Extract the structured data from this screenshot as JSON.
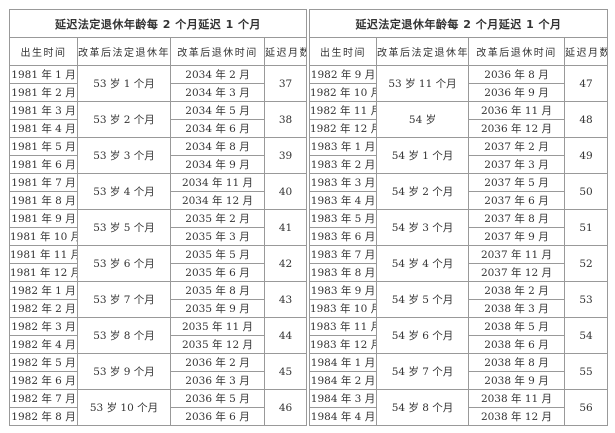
{
  "tables": [
    {
      "title": "延迟法定退休年龄每 2 个月延迟 1 个月",
      "headers": [
        "出生时间",
        "改革后法定退休年龄",
        "改革后退休时间",
        "延迟月数"
      ],
      "groups": [
        {
          "age": "53 岁 1 个月",
          "delay": "37",
          "rows": [
            {
              "birth": "1981 年 1 月",
              "retire": "2034 年 2 月"
            },
            {
              "birth": "1981 年 2 月",
              "retire": "2034 年 3 月"
            }
          ]
        },
        {
          "age": "53 岁 2 个月",
          "delay": "38",
          "rows": [
            {
              "birth": "1981 年 3 月",
              "retire": "2034 年 5 月"
            },
            {
              "birth": "1981 年 4 月",
              "retire": "2034 年 6 月"
            }
          ]
        },
        {
          "age": "53 岁 3 个月",
          "delay": "39",
          "rows": [
            {
              "birth": "1981 年 5 月",
              "retire": "2034 年 8 月"
            },
            {
              "birth": "1981 年 6 月",
              "retire": "2034 年 9 月"
            }
          ]
        },
        {
          "age": "53 岁 4 个月",
          "delay": "40",
          "rows": [
            {
              "birth": "1981 年 7 月",
              "retire": "2034 年 11 月"
            },
            {
              "birth": "1981 年 8 月",
              "retire": "2034 年 12 月"
            }
          ]
        },
        {
          "age": "53 岁 5 个月",
          "delay": "41",
          "rows": [
            {
              "birth": "1981 年 9 月",
              "retire": "2035 年 2 月"
            },
            {
              "birth": "1981 年 10 月",
              "retire": "2035 年 3 月"
            }
          ]
        },
        {
          "age": "53 岁 6 个月",
          "delay": "42",
          "rows": [
            {
              "birth": "1981 年 11 月",
              "retire": "2035 年 5 月"
            },
            {
              "birth": "1981 年 12 月",
              "retire": "2035 年 6 月"
            }
          ]
        },
        {
          "age": "53 岁 7 个月",
          "delay": "43",
          "rows": [
            {
              "birth": "1982 年 1 月",
              "retire": "2035 年 8 月"
            },
            {
              "birth": "1982 年 2 月",
              "retire": "2035 年 9 月"
            }
          ]
        },
        {
          "age": "53 岁 8 个月",
          "delay": "44",
          "rows": [
            {
              "birth": "1982 年 3 月",
              "retire": "2035 年 11 月"
            },
            {
              "birth": "1982 年 4 月",
              "retire": "2035 年 12 月"
            }
          ]
        },
        {
          "age": "53 岁 9 个月",
          "delay": "45",
          "rows": [
            {
              "birth": "1982 年 5 月",
              "retire": "2036 年 2 月"
            },
            {
              "birth": "1982 年 6 月",
              "retire": "2036 年 3 月"
            }
          ]
        },
        {
          "age": "53 岁 10 个月",
          "delay": "46",
          "rows": [
            {
              "birth": "1982 年 7 月",
              "retire": "2036 年 5 月"
            },
            {
              "birth": "1982 年 8 月",
              "retire": "2036 年 6 月"
            }
          ]
        }
      ]
    },
    {
      "title": "延迟法定退休年龄每 2 个月延迟 1 个月",
      "headers": [
        "出生时间",
        "改革后法定退休年龄",
        "改革后退休时间",
        "延迟月数"
      ],
      "groups": [
        {
          "age": "53 岁 11 个月",
          "delay": "47",
          "rows": [
            {
              "birth": "1982 年 9 月",
              "retire": "2036 年 8 月"
            },
            {
              "birth": "1982 年 10 月",
              "retire": "2036 年 9 月"
            }
          ]
        },
        {
          "age": "54 岁",
          "delay": "48",
          "rows": [
            {
              "birth": "1982 年 11 月",
              "retire": "2036 年 11 月"
            },
            {
              "birth": "1982 年 12 月",
              "retire": "2036 年 12 月"
            }
          ]
        },
        {
          "age": "54 岁 1 个月",
          "delay": "49",
          "rows": [
            {
              "birth": "1983 年 1 月",
              "retire": "2037 年 2 月"
            },
            {
              "birth": "1983 年 2 月",
              "retire": "2037 年 3 月"
            }
          ]
        },
        {
          "age": "54 岁 2 个月",
          "delay": "50",
          "rows": [
            {
              "birth": "1983 年 3 月",
              "retire": "2037 年 5 月"
            },
            {
              "birth": "1983 年 4 月",
              "retire": "2037 年 6 月"
            }
          ]
        },
        {
          "age": "54 岁 3 个月",
          "delay": "51",
          "rows": [
            {
              "birth": "1983 年 5 月",
              "retire": "2037 年 8 月"
            },
            {
              "birth": "1983 年 6 月",
              "retire": "2037 年 9 月"
            }
          ]
        },
        {
          "age": "54 岁 4 个月",
          "delay": "52",
          "rows": [
            {
              "birth": "1983 年 7 月",
              "retire": "2037 年 11 月"
            },
            {
              "birth": "1983 年 8 月",
              "retire": "2037 年 12 月"
            }
          ]
        },
        {
          "age": "54 岁 5 个月",
          "delay": "53",
          "rows": [
            {
              "birth": "1983 年 9 月",
              "retire": "2038 年 2 月"
            },
            {
              "birth": "1983 年 10 月",
              "retire": "2038 年 3 月"
            }
          ]
        },
        {
          "age": "54 岁 6 个月",
          "delay": "54",
          "rows": [
            {
              "birth": "1983 年 11 月",
              "retire": "2038 年 5 月"
            },
            {
              "birth": "1983 年 12 月",
              "retire": "2038 年 6 月"
            }
          ]
        },
        {
          "age": "54 岁 7 个月",
          "delay": "55",
          "rows": [
            {
              "birth": "1984 年 1 月",
              "retire": "2038 年 8 月"
            },
            {
              "birth": "1984 年 2 月",
              "retire": "2038 年 9 月"
            }
          ]
        },
        {
          "age": "54 岁 8 个月",
          "delay": "56",
          "rows": [
            {
              "birth": "1984 年 3 月",
              "retire": "2038 年 11 月"
            },
            {
              "birth": "1984 年 4 月",
              "retire": "2038 年 12 月"
            }
          ]
        }
      ]
    }
  ]
}
